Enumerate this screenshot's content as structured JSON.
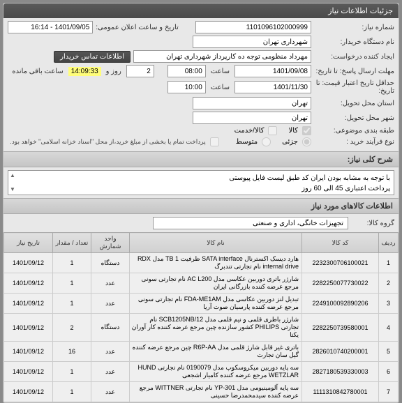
{
  "panel1_title": "جزئیات اطلاعات نیاز",
  "form": {
    "req_no_label": "شماره نیاز:",
    "req_no": "1101096102000999",
    "org_label": "نام دستگاه خریدار:",
    "org": "شهرداری تهران",
    "creator_label": "ایجاد کننده درخواست:",
    "creator": "مهرداد منظومی توجه ده کارپرداز شهرداری تهران",
    "contact_btn": "اطلاعات تماس خریدار",
    "deadline_label": "مهلت ارسال پاسخ: تا تاریخ:",
    "deadline_date": "1401/09/08",
    "time_label": "ساعت",
    "deadline_time": "08:00",
    "days": "2",
    "days_suffix": "روز و",
    "countdown": "14:09:33",
    "remain_suffix": "ساعت باقی مانده",
    "validity_label": "حداقل تاریخ اعتبار قیمت: تا تاریخ:",
    "validity_date": "1401/11/30",
    "validity_time": "10:00",
    "province_label": "استان محل تحویل:",
    "province": "تهران",
    "city_label": "شهر محل تحویل:",
    "city": "تهران",
    "class_label": "طبقه بندی موضوعی:",
    "class_goods": "کالا",
    "class_service": "کالا/خدمت",
    "buytype_label": "نوع فرآیند خرید :",
    "buytype_low": "جزئی",
    "buytype_mid": "متوسط",
    "pay_note": "پرداخت تمام یا بخشی از مبلغ خرید،از محل \"اسناد خزانه اسلامی\" خواهد بود.",
    "announce_label": "تاریخ و ساعت اعلان عمومی:",
    "announce": "1401/09/05 - 16:14"
  },
  "desc_label": "شرح کلی نیاز:",
  "desc_text": "با توجه به مشابه بودن ایران کد طبق لیست فایل پیوستی\nپرداخت اعتباری 45 الی 60 روز",
  "panel2_title": "اطلاعات کالاهای مورد نیاز",
  "group_label": "گروه کالا:",
  "group_value": "تجهیزات خانگی، اداری و صنعتی",
  "table": {
    "headers": {
      "idx": "ردیف",
      "code": "کد کالا",
      "name": "نام کالا",
      "unit": "واحد شمارش",
      "qty": "تعداد / مقدار",
      "date": "تاریخ نیاز"
    },
    "rows": [
      {
        "idx": "1",
        "code": "2232300706100021",
        "name": "هارد دیسک اکسترنال SATA interface ظرفیت TB 1 مدل RDX internal drive نام تجارتی تندبرگ",
        "unit": "دستگاه",
        "qty": "1",
        "date": "1401/09/12"
      },
      {
        "idx": "2",
        "code": "2282250077730022",
        "name": "شارژر باتری دوربین عکاسی مدل AC L200 نام تجارتی سونی مرجع عرضه کننده بازرگانی ایران",
        "unit": "عدد",
        "qty": "1",
        "date": "1401/09/12"
      },
      {
        "idx": "3",
        "code": "2249100092890206",
        "name": "تبدیل لنز دوربین عکاسی مدل FDA-ME1AM نام تجارتی سونی مرجع عرضه کننده پارسیان صوت آریا",
        "unit": "عدد",
        "qty": "1",
        "date": "1401/09/12"
      },
      {
        "idx": "4",
        "code": "2282250739580001",
        "name": "شارژر باطری قلمی و نیم قلمی مدل SCB1205NB/12 نام تجارتی PHILIPS کشور سازنده چین مرجع عرضه کننده کار آوران یکتا",
        "unit": "دستگاه",
        "qty": "2",
        "date": "1401/09/12"
      },
      {
        "idx": "5",
        "code": "2826010740200001",
        "name": "باتری غیر قابل شارژ قلمی مدل R6P-AA چین مرجع عرضه کننده گیل سان تجارت",
        "unit": "عدد",
        "qty": "16",
        "date": "1401/09/12"
      },
      {
        "idx": "6",
        "code": "2827180539330003",
        "name": "سه پایه دوربین میکروسکوپ مدل 0190079 نام تجارتی HUND WETZLAR مرجع عرضه کننده کامیار اشجعی",
        "unit": "عدد",
        "qty": "1",
        "date": "1401/09/12"
      },
      {
        "idx": "7",
        "code": "1111310842780001",
        "name": "سه پایه آلومینیومی مدل YP-301 نام تجارتی WITTNER مرجع عرضه کننده سیدمحمدرضا حسینی",
        "unit": "عدد",
        "qty": "1",
        "date": "1401/09/12"
      }
    ]
  }
}
